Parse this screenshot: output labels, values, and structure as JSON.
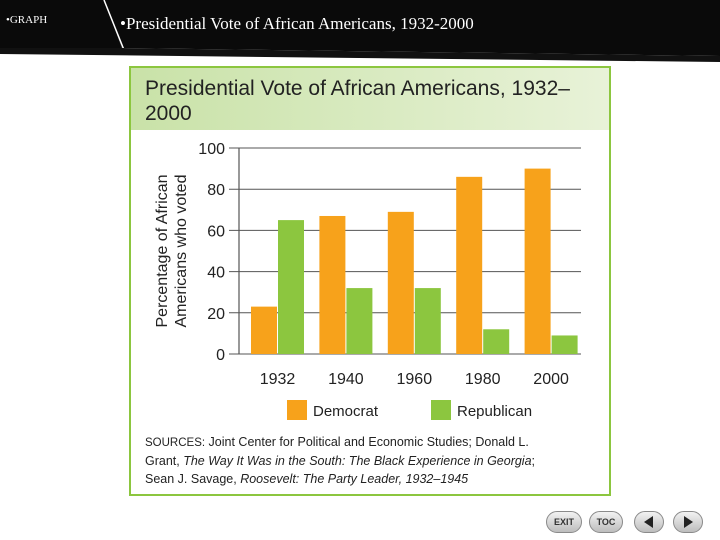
{
  "slide": {
    "tag": "•GRAPH",
    "title": "•Presidential Vote of African Americans, 1932-2000"
  },
  "figure": {
    "sources_lead": "Sources:",
    "sources_line1_rest": " Joint Center for Political and Economic Studies; Donald L.",
    "sources_line2_a": "Grant, ",
    "sources_line2_italic": "The Way It Was in the South: The Black Experience in Georgia",
    "sources_line2_b": ";",
    "sources_line3_a": "Sean J. Savage, ",
    "sources_line3_italic": "Roosevelt: The Party Leader, 1932–1945"
  },
  "chart_data": {
    "type": "bar",
    "title": "Presidential Vote of African Americans, 1932–2000",
    "ylabel": "Percentage of African Americans who voted",
    "xlabel": "",
    "categories": [
      "1932",
      "1940",
      "1960",
      "1980",
      "2000"
    ],
    "series": [
      {
        "name": "Democrat",
        "color": "#f7a21b",
        "values": [
          23,
          67,
          69,
          86,
          90
        ]
      },
      {
        "name": "Republican",
        "color": "#8cc63f",
        "values": [
          65,
          32,
          32,
          12,
          9
        ]
      }
    ],
    "ylim": [
      0,
      100
    ],
    "yticks": [
      0,
      20,
      40,
      60,
      80,
      100
    ],
    "grid": true,
    "legend": "bottom"
  },
  "nav": {
    "exit_label": "EXIT",
    "toc_label": "TOC",
    "prev_icon": "triangle-left-icon",
    "next_icon": "triangle-right-icon"
  }
}
